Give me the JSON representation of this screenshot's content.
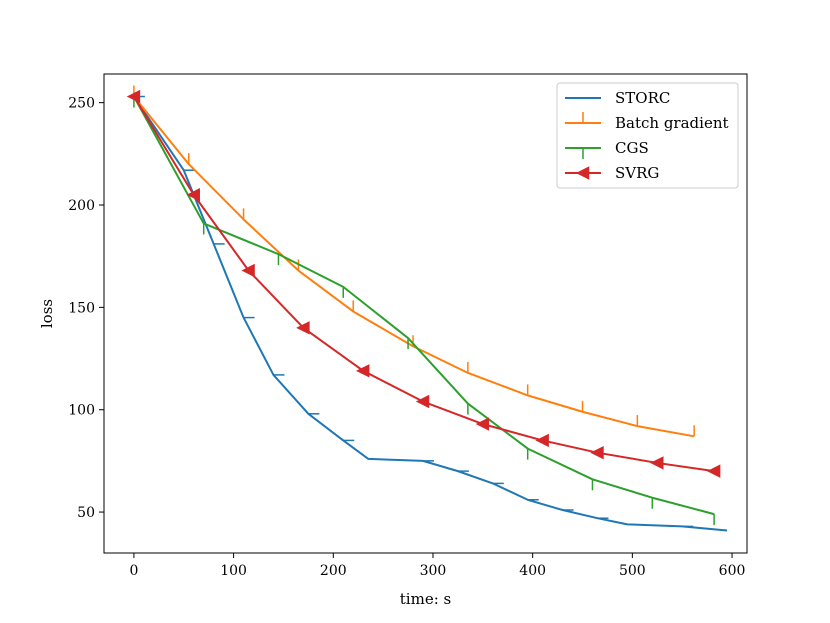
{
  "chart_data": {
    "type": "line",
    "title": "",
    "xlabel": "time: s",
    "ylabel": "loss",
    "xlim": [
      -30,
      615
    ],
    "ylim": [
      30,
      264
    ],
    "xticks": [
      0,
      100,
      200,
      300,
      400,
      500,
      600
    ],
    "yticks": [
      50,
      100,
      150,
      200,
      250
    ],
    "xtick_labels": [
      "0",
      "100",
      "200",
      "300",
      "400",
      "500",
      "600"
    ],
    "ytick_labels": [
      "50",
      "100",
      "150",
      "200",
      "250"
    ],
    "grid": false,
    "legend": "top-right",
    "series": [
      {
        "name": "STORC",
        "color": "#1f77b4",
        "marker": "tickdown-horizontal",
        "x": [
          0,
          50,
          80,
          110,
          140,
          175,
          210,
          235,
          290,
          325,
          360,
          395,
          430,
          465,
          495,
          550,
          595
        ],
        "y": [
          253,
          217,
          181,
          145,
          117,
          98,
          85,
          76,
          75,
          70,
          64,
          56,
          51,
          47,
          44,
          43,
          41
        ],
        "marker_x": [
          0,
          50,
          80,
          110,
          140,
          175,
          210,
          290,
          325,
          360,
          395,
          430,
          465,
          550
        ],
        "marker_y": [
          253,
          217,
          181,
          145,
          117,
          98,
          85,
          75,
          70,
          64,
          56,
          51,
          47,
          43
        ]
      },
      {
        "name": "Batch gradient",
        "color": "#ff7f0e",
        "marker": "tickup",
        "x": [
          0,
          55,
          110,
          165,
          220,
          280,
          335,
          395,
          450,
          505,
          562
        ],
        "y": [
          253,
          220,
          193,
          168,
          148,
          131,
          118,
          107,
          99,
          92,
          87
        ]
      },
      {
        "name": "CGS",
        "color": "#2ca02c",
        "marker": "tickdown",
        "x": [
          0,
          70,
          145,
          210,
          275,
          335,
          395,
          460,
          520,
          582
        ],
        "y": [
          253,
          191,
          176,
          160,
          135,
          103,
          81,
          66,
          57,
          49
        ]
      },
      {
        "name": "SVRG",
        "color": "#d62728",
        "marker": "triangle-left",
        "x": [
          0,
          60,
          115,
          170,
          230,
          290,
          350,
          410,
          465,
          525,
          582
        ],
        "y": [
          253,
          205,
          168,
          140,
          119,
          104,
          93,
          85,
          79,
          74,
          70
        ]
      }
    ]
  }
}
